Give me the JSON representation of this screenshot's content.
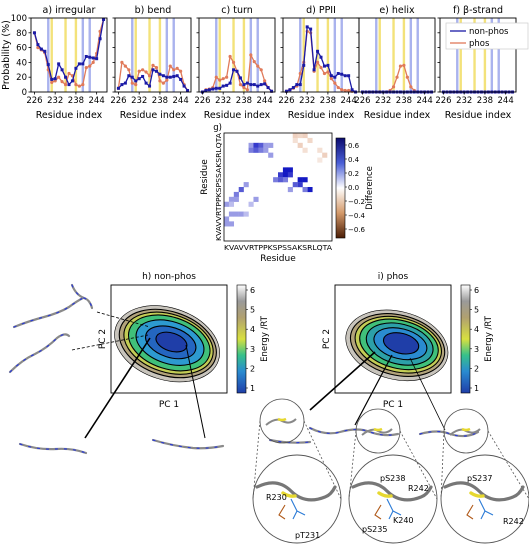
{
  "colors": {
    "nonphos": "#1a1aa6",
    "phos": "#e07a5a",
    "band_yellow": "#f3e27a",
    "band_blue": "#aab3ee"
  },
  "chart_data": [
    {
      "type": "line",
      "panel": "secondary-structure",
      "ylabel": "Probability (%)",
      "xlabel": "Residue index",
      "xticks": [
        226,
        232,
        238,
        244
      ],
      "yticks": [
        0,
        20,
        40,
        60,
        80,
        100
      ],
      "xlim": [
        225,
        247
      ],
      "ylim": [
        0,
        100
      ],
      "x": [
        226,
        227,
        228,
        229,
        230,
        231,
        232,
        233,
        234,
        235,
        236,
        237,
        238,
        239,
        240,
        241,
        242,
        243,
        244,
        245,
        246
      ],
      "highlight_yellow": [
        231,
        235,
        238
      ],
      "highlight_blue": [
        230,
        240,
        242
      ],
      "legend": [
        "non-phos",
        "phos"
      ],
      "panels": [
        {
          "label": "a) irregular",
          "series": [
            {
              "name": "non-phos",
              "values": [
                80,
                64,
                58,
                55,
                37,
                17,
                18,
                38,
                30,
                20,
                10,
                15,
                32,
                38,
                38,
                48,
                47,
                46,
                45,
                72,
                98
              ]
            },
            {
              "name": "phos",
              "values": [
                80,
                60,
                57,
                53,
                30,
                13,
                15,
                20,
                14,
                10,
                25,
                22,
                10,
                8,
                10,
                33,
                35,
                40,
                52,
                82,
                98
              ]
            }
          ]
        },
        {
          "label": "b) bend",
          "series": [
            {
              "name": "non-phos",
              "values": [
                5,
                10,
                12,
                22,
                20,
                15,
                18,
                21,
                12,
                8,
                30,
                28,
                24,
                22,
                20,
                20,
                21,
                22,
                17,
                8,
                2
              ]
            },
            {
              "name": "phos",
              "values": [
                5,
                40,
                35,
                30,
                12,
                10,
                28,
                30,
                27,
                22,
                36,
                33,
                15,
                12,
                16,
                35,
                30,
                32,
                28,
                10,
                2
              ]
            }
          ]
        },
        {
          "label": "c) turn",
          "series": [
            {
              "name": "non-phos",
              "values": [
                0,
                2,
                3,
                4,
                5,
                5,
                8,
                9,
                12,
                30,
                28,
                19,
                10,
                12,
                10,
                10,
                8,
                10,
                11,
                6,
                1
              ]
            },
            {
              "name": "phos",
              "values": [
                0,
                3,
                4,
                6,
                20,
                16,
                18,
                20,
                48,
                40,
                28,
                10,
                6,
                3,
                50,
                41,
                35,
                30,
                15,
                6,
                1
              ]
            }
          ]
        },
        {
          "label": "d) PPII",
          "series": [
            {
              "name": "non-phos",
              "values": [
                1,
                3,
                6,
                10,
                10,
                36,
                88,
                85,
                30,
                55,
                47,
                35,
                36,
                22,
                20,
                25,
                24,
                22,
                22,
                3,
                0
              ]
            },
            {
              "name": "phos",
              "values": [
                1,
                3,
                5,
                8,
                25,
                40,
                82,
                80,
                28,
                40,
                33,
                25,
                27,
                18,
                12,
                6,
                3,
                2,
                2,
                1,
                0
              ]
            }
          ]
        },
        {
          "label": "e) helix",
          "series": [
            {
              "name": "non-phos",
              "values": [
                0,
                0,
                0,
                0,
                0,
                0,
                0,
                0,
                0,
                0,
                0,
                0,
                0,
                0,
                0,
                0,
                0,
                0,
                0,
                0,
                0
              ]
            },
            {
              "name": "phos",
              "values": [
                0,
                0,
                0,
                0,
                0,
                0,
                0,
                0,
                2,
                7,
                20,
                35,
                36,
                20,
                7,
                2,
                0,
                0,
                0,
                0,
                0
              ]
            }
          ]
        },
        {
          "label": "f) β-strand",
          "series": [
            {
              "name": "non-phos",
              "values": [
                0,
                0,
                0,
                0,
                0,
                0,
                0,
                0,
                0,
                0,
                0,
                0,
                0,
                0,
                0,
                0,
                0,
                0,
                0,
                0,
                0
              ]
            },
            {
              "name": "phos",
              "values": [
                0,
                0,
                0,
                0,
                0,
                0,
                0,
                0,
                0,
                0,
                0,
                0,
                0,
                0,
                0,
                0,
                0,
                0,
                0,
                0,
                0
              ]
            }
          ]
        }
      ]
    },
    {
      "type": "heatmap",
      "panel": "g",
      "label": "g)",
      "xlabel": "Residue",
      "ylabel": "Residue",
      "sequence": "KVAVVRTPPKSPSSAKSRLQTA",
      "colorbar_label": "Difference",
      "colorbar_ticks": [
        "0.6",
        "0.4",
        "0.2",
        "0.0",
        "−0.2",
        "−0.4",
        "−0.6"
      ],
      "clim": [
        -0.7,
        0.7
      ],
      "cells": [
        [
          5,
          2,
          0.3
        ],
        [
          6,
          2,
          0.6
        ],
        [
          7,
          2,
          0.5
        ],
        [
          8,
          2,
          0.3
        ],
        [
          9,
          2,
          0.3
        ],
        [
          5,
          3,
          0.4
        ],
        [
          6,
          3,
          0.5
        ],
        [
          7,
          3,
          0.4
        ],
        [
          8,
          3,
          0.3
        ],
        [
          9,
          4,
          0.3
        ],
        [
          12,
          7,
          0.9
        ],
        [
          13,
          7,
          0.8
        ],
        [
          11,
          8,
          0.6
        ],
        [
          12,
          8,
          0.7
        ],
        [
          10,
          9,
          0.4
        ],
        [
          11,
          9,
          0.5
        ],
        [
          12,
          9,
          0.4
        ],
        [
          13,
          8,
          0.6
        ],
        [
          15,
          9,
          0.7
        ],
        [
          16,
          9,
          0.9
        ],
        [
          15,
          10,
          0.6
        ],
        [
          14,
          10,
          0.5
        ],
        [
          17,
          11,
          0.8
        ],
        [
          16,
          11,
          0.4
        ],
        [
          13,
          11,
          0.3
        ],
        [
          4,
          10,
          0.3
        ],
        [
          3,
          11,
          0.5
        ],
        [
          2,
          12,
          0.4
        ],
        [
          1,
          13,
          0.3
        ],
        [
          2,
          13,
          0.3
        ],
        [
          0,
          14,
          0.3
        ],
        [
          1,
          14,
          0.2
        ],
        [
          6,
          13,
          0.3
        ],
        [
          5,
          14,
          0.2
        ],
        [
          1,
          16,
          0.3
        ],
        [
          2,
          16,
          0.3
        ],
        [
          3,
          16,
          0.3
        ],
        [
          4,
          16,
          0.2
        ],
        [
          0,
          17,
          0.3
        ],
        [
          0,
          18,
          0.3
        ],
        [
          1,
          18,
          0.3
        ],
        [
          14,
          0,
          -0.3
        ],
        [
          15,
          0,
          -0.25
        ],
        [
          16,
          0,
          -0.3
        ],
        [
          17,
          1,
          -0.25
        ],
        [
          14,
          1,
          -0.2
        ],
        [
          15,
          2,
          -0.3
        ],
        [
          19,
          3,
          -0.2
        ],
        [
          20,
          4,
          -0.3
        ],
        [
          19,
          5,
          -0.15
        ],
        [
          16,
          3,
          -0.2
        ]
      ]
    },
    {
      "type": "heatmap",
      "panel": "h",
      "title": "h) non-phos",
      "xlabel": "PC 1",
      "ylabel": "PC 2",
      "colorbar_label": "Energy /RT",
      "colorbar_ticks": [
        "6",
        "5",
        "4",
        "3",
        "2",
        "1"
      ],
      "clim": [
        0,
        6
      ]
    },
    {
      "type": "heatmap",
      "panel": "i",
      "title": "i) phos",
      "xlabel": "PC 1",
      "ylabel": "PC 2",
      "colorbar_label": "Energy /RT",
      "colorbar_ticks": [
        "6",
        "5",
        "4",
        "3",
        "2",
        "1"
      ],
      "clim": [
        0,
        6
      ]
    }
  ],
  "structure_labels": {
    "left": [
      "R230",
      "pT231"
    ],
    "middle": [
      "pS238",
      "R242",
      "pS235",
      "K240"
    ],
    "right": [
      "pS237",
      "R242"
    ]
  }
}
